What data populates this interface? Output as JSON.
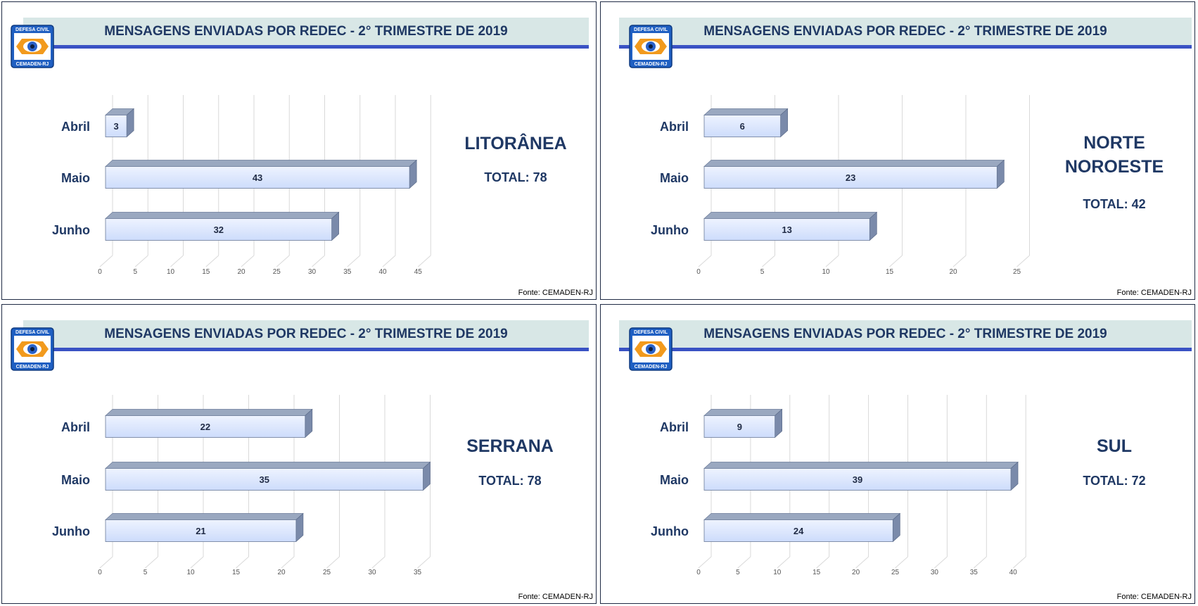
{
  "panels": [
    {
      "title": "MENSAGENS ENVIADAS POR REDEC - 2° TRIMESTRE DE 2019",
      "logo": {
        "top_text": "DEFESA CIVIL",
        "bottom_text": "CEMADEN-RJ"
      },
      "region": "LITORÂNEA",
      "total_label": "TOTAL: 78",
      "source": "Fonte: CEMADEN-RJ"
    },
    {
      "title": "MENSAGENS ENVIADAS POR REDEC - 2° TRIMESTRE DE 2019",
      "logo": {
        "top_text": "DEFESA CIVIL",
        "bottom_text": "CEMADEN-RJ"
      },
      "region": "NORTE\nNOROESTE",
      "total_label": "TOTAL: 42",
      "source": "Fonte: CEMADEN-RJ"
    },
    {
      "title": "MENSAGENS ENVIADAS POR REDEC - 2° TRIMESTRE DE 2019",
      "logo": {
        "top_text": "DEFESA CIVIL",
        "bottom_text": "CEMADEN-RJ"
      },
      "region": "SERRANA",
      "total_label": "TOTAL: 78",
      "source": "Fonte: CEMADEN-RJ"
    },
    {
      "title": "MENSAGENS ENVIADAS POR REDEC - 2° TRIMESTRE DE 2019",
      "logo": {
        "top_text": "DEFESA CIVIL",
        "bottom_text": "CEMADEN-RJ"
      },
      "region": "SUL",
      "total_label": "TOTAL: 72",
      "source": "Fonte: CEMADEN-RJ"
    }
  ],
  "colors": {
    "title_text": "#1f3864",
    "header_bg": "#d8e7e6",
    "header_rule": "#3a52c4",
    "bar_front": "#cddcfb",
    "bar_top": "#9aa8c0",
    "bar_side": "#7a8aaa",
    "gridline": "#d9d9d9",
    "panel_border": "#1f2a44"
  },
  "chart_data": [
    {
      "type": "bar",
      "orientation": "horizontal",
      "categories": [
        "Abril",
        "Maio",
        "Junho"
      ],
      "values": [
        3,
        43,
        32
      ],
      "xlim": [
        0,
        45
      ],
      "ticks": [
        0,
        5,
        10,
        15,
        20,
        25,
        30,
        35,
        40,
        45
      ],
      "grid": true,
      "data_labels": true
    },
    {
      "type": "bar",
      "orientation": "horizontal",
      "categories": [
        "Abril",
        "Maio",
        "Junho"
      ],
      "values": [
        6,
        23,
        13
      ],
      "xlim": [
        0,
        25
      ],
      "ticks": [
        0,
        5,
        10,
        15,
        20,
        25
      ],
      "grid": true,
      "data_labels": true
    },
    {
      "type": "bar",
      "orientation": "horizontal",
      "categories": [
        "Abril",
        "Maio",
        "Junho"
      ],
      "values": [
        22,
        35,
        21
      ],
      "xlim": [
        0,
        35
      ],
      "ticks": [
        0,
        5,
        10,
        15,
        20,
        25,
        30,
        35
      ],
      "grid": true,
      "data_labels": true
    },
    {
      "type": "bar",
      "orientation": "horizontal",
      "categories": [
        "Abril",
        "Maio",
        "Junho"
      ],
      "values": [
        9,
        39,
        24
      ],
      "xlim": [
        0,
        40
      ],
      "ticks": [
        0,
        5,
        10,
        15,
        20,
        25,
        30,
        35,
        40
      ],
      "grid": true,
      "data_labels": true
    }
  ]
}
